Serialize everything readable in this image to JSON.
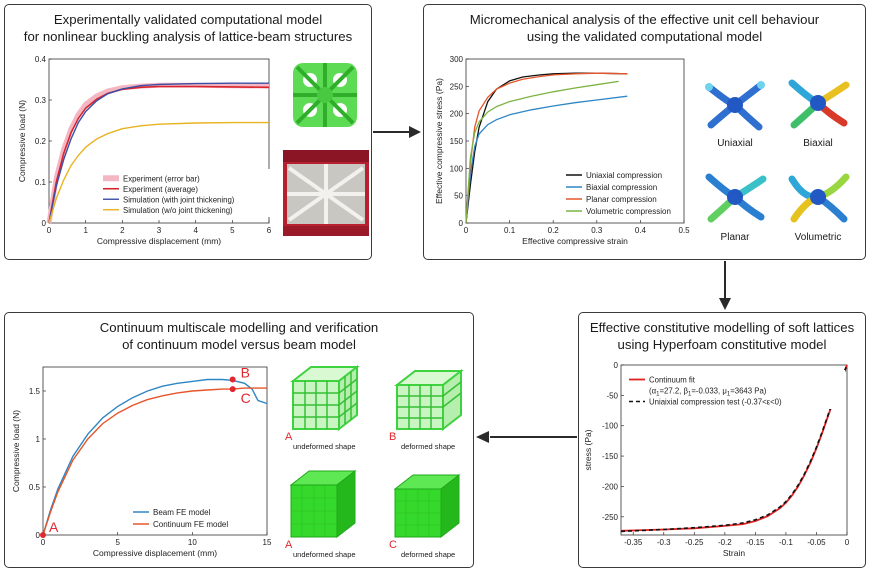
{
  "panel1": {
    "title_line1": "Experimentally validated computational model",
    "title_line2": "for nonlinear buckling analysis of lattice-beam structures"
  },
  "panel2": {
    "title_line1": "Micromechanical analysis of the effective unit cell behaviour",
    "title_line2": "using the validated computational model",
    "labels": {
      "uniaxial": "Uniaxial",
      "biaxial": "Biaxial",
      "planar": "Planar",
      "volumetric": "Volumetric"
    }
  },
  "panel3": {
    "title_line1": "Effective constitutive modelling of soft lattices",
    "title_line2": "using Hyperfoam constitutive model"
  },
  "panel4": {
    "title_line1": "Continuum multiscale modelling and verification",
    "title_line2": "of continuum model versus beam model",
    "cubes": [
      {
        "letter": "A",
        "caption": "undeformed shape"
      },
      {
        "letter": "B",
        "caption": "deformed shape"
      },
      {
        "letter": "A",
        "caption": "undeformed shape"
      },
      {
        "letter": "C",
        "caption": "deformed shape"
      }
    ]
  },
  "colors": {
    "lattice_green": "#3fd23f",
    "solid_green": "#33dd22",
    "annotation_red": "#e0282e"
  },
  "chart_data": [
    {
      "type": "line",
      "xlabel": "Compressive displacement (mm)",
      "ylabel": "Compressive load (N)",
      "xlim": [
        0,
        6
      ],
      "ylim": [
        0,
        0.4
      ],
      "xticks": [
        "0",
        "1",
        "2",
        "3",
        "4",
        "5",
        "6"
      ],
      "yticks": [
        "0",
        "0.1",
        "0.2",
        "0.3",
        "0.4"
      ],
      "legend_position": "lower-right",
      "series": [
        {
          "name": "Experiment (error bar)",
          "color": "#f4b6c2",
          "x": [
            0,
            0.2,
            0.4,
            0.6,
            0.8,
            1,
            1.3,
            1.6,
            2,
            2.5,
            3,
            4,
            5,
            6
          ],
          "y": [
            0,
            0.11,
            0.18,
            0.23,
            0.265,
            0.29,
            0.31,
            0.322,
            0.33,
            0.334,
            0.336,
            0.336,
            0.335,
            0.334
          ]
        },
        {
          "name": "Experiment (average)",
          "color": "#d9262e",
          "x": [
            0,
            0.2,
            0.4,
            0.6,
            0.8,
            1,
            1.3,
            1.6,
            2,
            2.5,
            3,
            4,
            5,
            6
          ],
          "y": [
            0,
            0.1,
            0.17,
            0.22,
            0.255,
            0.28,
            0.302,
            0.316,
            0.326,
            0.331,
            0.333,
            0.333,
            0.332,
            0.331
          ]
        },
        {
          "name": "Simulation (with joint thickening)",
          "color": "#3a4fa8",
          "x": [
            0,
            0.2,
            0.4,
            0.6,
            0.8,
            1,
            1.3,
            1.6,
            2,
            2.5,
            3,
            4,
            5,
            6
          ],
          "y": [
            0,
            0.09,
            0.155,
            0.205,
            0.245,
            0.272,
            0.298,
            0.315,
            0.327,
            0.335,
            0.338,
            0.34,
            0.341,
            0.341
          ]
        },
        {
          "name": "Simulation (w/o joint thickening)",
          "color": "#e8b320",
          "x": [
            0,
            0.2,
            0.4,
            0.6,
            0.8,
            1,
            1.3,
            1.6,
            2,
            2.5,
            3,
            4,
            5,
            6
          ],
          "y": [
            0,
            0.06,
            0.105,
            0.14,
            0.165,
            0.185,
            0.205,
            0.218,
            0.23,
            0.237,
            0.241,
            0.244,
            0.245,
            0.245
          ]
        }
      ]
    },
    {
      "type": "line",
      "xlabel": "Effective compressive strain",
      "ylabel": "Effective compressive stress (Pa)",
      "xlim": [
        0,
        0.5
      ],
      "ylim": [
        0,
        300
      ],
      "xticks": [
        "0",
        "0.1",
        "0.2",
        "0.3",
        "0.4",
        "0.5"
      ],
      "yticks": [
        "0",
        "50",
        "100",
        "150",
        "200",
        "250",
        "300"
      ],
      "legend_position": "lower-right",
      "series": [
        {
          "name": "Uniaxial compression",
          "color": "#111111",
          "x": [
            0,
            0.01,
            0.02,
            0.03,
            0.05,
            0.07,
            0.1,
            0.13,
            0.17,
            0.2,
            0.25,
            0.3,
            0.37
          ],
          "y": [
            0,
            70,
            130,
            175,
            222,
            245,
            260,
            267,
            271,
            273,
            274,
            274,
            273
          ]
        },
        {
          "name": "Biaxial compression",
          "color": "#2f86c4",
          "x": [
            0,
            0.01,
            0.02,
            0.03,
            0.05,
            0.07,
            0.1,
            0.15,
            0.2,
            0.25,
            0.3,
            0.37
          ],
          "y": [
            0,
            90,
            140,
            163,
            180,
            189,
            198,
            207,
            214,
            220,
            225,
            232
          ]
        },
        {
          "name": "Planar compression",
          "color": "#e5562a",
          "x": [
            0,
            0.01,
            0.02,
            0.03,
            0.05,
            0.07,
            0.1,
            0.13,
            0.17,
            0.2,
            0.25,
            0.3,
            0.37
          ],
          "y": [
            0,
            110,
            175,
            205,
            230,
            245,
            256,
            263,
            268,
            271,
            273,
            274,
            273
          ]
        },
        {
          "name": "Volumetric compression",
          "color": "#7cb342",
          "x": [
            0,
            0.01,
            0.02,
            0.03,
            0.05,
            0.07,
            0.1,
            0.15,
            0.2,
            0.25,
            0.3,
            0.35
          ],
          "y": [
            0,
            120,
            165,
            185,
            203,
            213,
            222,
            232,
            240,
            247,
            253,
            259
          ]
        }
      ]
    },
    {
      "type": "line",
      "xlabel": "Strain",
      "ylabel": "stress (Pa)",
      "xlim": [
        -0.37,
        0
      ],
      "ylim": [
        -280,
        0
      ],
      "xticks": [
        "-0.35",
        "-0.3",
        "-0.25",
        "-0.2",
        "-0.15",
        "-0.1",
        "-0.05",
        "0"
      ],
      "yticks": [
        "0",
        "-50",
        "-100",
        "-150",
        "-200",
        "-250"
      ],
      "legend_position": "top-left",
      "series": [
        {
          "name": "Continuum fit",
          "color": "#e02020",
          "label_parts": [
            "(α",
            "1",
            "=27.2, β",
            "1",
            "=-0.033, μ",
            "1",
            "=3643 Pa)"
          ],
          "x": [
            -0.37,
            -0.3,
            -0.25,
            -0.2,
            -0.17,
            -0.15,
            -0.13,
            -0.11,
            -0.1,
            -0.09,
            -0.08,
            -0.07,
            -0.06,
            -0.05,
            -0.04,
            -0.03,
            -0.02,
            -0.01,
            0
          ],
          "y": [
            -273,
            -271,
            -269,
            -265,
            -262,
            -257,
            -249,
            -236,
            -227,
            -215,
            -200,
            -182,
            -161,
            -137,
            -110,
            -81,
            -53,
            -26,
            0
          ]
        },
        {
          "name": "Uniaixial compression test (-0.37<ε<0)",
          "color": "#111111",
          "dashed": true,
          "x": [
            -0.37,
            -0.3,
            -0.25,
            -0.2,
            -0.17,
            -0.15,
            -0.13,
            -0.11,
            -0.1,
            -0.09,
            -0.08,
            -0.07,
            -0.06,
            -0.05,
            -0.04,
            -0.03,
            -0.02,
            -0.01,
            0
          ],
          "y": [
            -274,
            -271,
            -268,
            -264,
            -260,
            -255,
            -247,
            -234,
            -225,
            -213,
            -198,
            -180,
            -159,
            -135,
            -108,
            -79,
            -51,
            -24,
            0
          ]
        }
      ]
    },
    {
      "type": "line",
      "xlabel": "Compressive displacement (mm)",
      "ylabel": "Compressive load (N)",
      "xlim": [
        0,
        15
      ],
      "ylim": [
        0,
        1.75
      ],
      "xticks": [
        "0",
        "5",
        "10",
        "15"
      ],
      "yticks": [
        "0",
        "0.5",
        "1",
        "1.5"
      ],
      "legend_position": "lower-right",
      "annotations": [
        "A",
        "B",
        "C"
      ],
      "series": [
        {
          "name": "Beam FE model",
          "color": "#2f86c4",
          "x": [
            0,
            0.5,
            1,
            2,
            3,
            4,
            5,
            6,
            7,
            8,
            9,
            10,
            11,
            12,
            12.7,
            13.5,
            14,
            14.4,
            15
          ],
          "y": [
            0,
            0.26,
            0.48,
            0.82,
            1.05,
            1.22,
            1.34,
            1.43,
            1.5,
            1.55,
            1.58,
            1.6,
            1.62,
            1.62,
            1.61,
            1.58,
            1.52,
            1.4,
            1.37
          ]
        },
        {
          "name": "Continuum FE model",
          "color": "#e5562a",
          "x": [
            0,
            0.5,
            1,
            2,
            3,
            4,
            5,
            6,
            7,
            8,
            9,
            10,
            11,
            12,
            12.7,
            13.5,
            14,
            15
          ],
          "y": [
            0,
            0.24,
            0.45,
            0.78,
            1.0,
            1.16,
            1.27,
            1.35,
            1.41,
            1.45,
            1.48,
            1.5,
            1.51,
            1.52,
            1.52,
            1.53,
            1.53,
            1.53
          ]
        }
      ]
    }
  ]
}
